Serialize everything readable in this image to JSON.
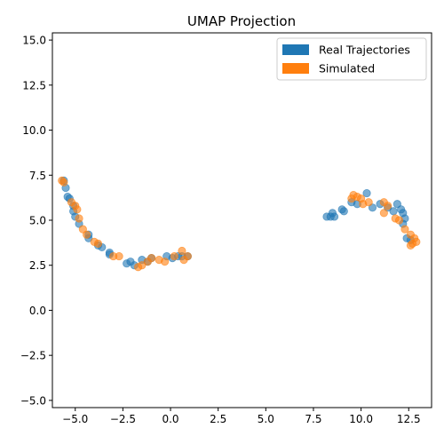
{
  "chart_data": {
    "type": "scatter",
    "title": "UMAP Projection",
    "xlabel": "",
    "ylabel": "",
    "xlim": [
      -6.2,
      13.7
    ],
    "ylim": [
      -5.4,
      15.4
    ],
    "xticks": [
      -5.0,
      -2.5,
      0.0,
      2.5,
      5.0,
      7.5,
      10.0,
      12.5
    ],
    "xtick_labels": [
      "−5.0",
      "−2.5",
      "0.0",
      "2.5",
      "5.0",
      "7.5",
      "10.0",
      "12.5"
    ],
    "yticks": [
      -5.0,
      -2.5,
      0.0,
      2.5,
      5.0,
      7.5,
      10.0,
      12.5,
      15.0
    ],
    "ytick_labels": [
      "−5.0",
      "−2.5",
      "0.0",
      "2.5",
      "5.0",
      "7.5",
      "10.0",
      "12.5",
      "15.0"
    ],
    "grid": false,
    "legend_position": "top-right",
    "series": [
      {
        "name": "Real Trajectories",
        "color": "#1f77b4",
        "points": [
          [
            -5.6,
            7.2
          ],
          [
            -5.5,
            6.8
          ],
          [
            -5.4,
            6.3
          ],
          [
            -5.3,
            6.2
          ],
          [
            -5.1,
            5.8
          ],
          [
            -5.1,
            5.5
          ],
          [
            -5.0,
            5.2
          ],
          [
            -4.8,
            4.8
          ],
          [
            -4.3,
            4.2
          ],
          [
            -4.3,
            4.0
          ],
          [
            -3.8,
            3.6
          ],
          [
            -3.6,
            3.5
          ],
          [
            -3.2,
            3.2
          ],
          [
            -3.2,
            3.1
          ],
          [
            -2.3,
            2.6
          ],
          [
            -2.1,
            2.7
          ],
          [
            -1.9,
            2.5
          ],
          [
            -1.5,
            2.8
          ],
          [
            -1.2,
            2.7
          ],
          [
            -1.0,
            2.9
          ],
          [
            -0.2,
            3.0
          ],
          [
            0.1,
            2.9
          ],
          [
            0.4,
            3.0
          ],
          [
            0.6,
            3.0
          ],
          [
            0.9,
            3.0
          ],
          [
            8.2,
            5.2
          ],
          [
            8.4,
            5.2
          ],
          [
            8.5,
            5.4
          ],
          [
            8.6,
            5.2
          ],
          [
            9.0,
            5.6
          ],
          [
            9.1,
            5.5
          ],
          [
            9.5,
            6.0
          ],
          [
            9.8,
            5.9
          ],
          [
            10.3,
            6.5
          ],
          [
            10.6,
            5.7
          ],
          [
            11.0,
            5.9
          ],
          [
            11.4,
            5.7
          ],
          [
            11.7,
            5.5
          ],
          [
            11.9,
            5.9
          ],
          [
            12.1,
            5.6
          ],
          [
            12.2,
            5.4
          ],
          [
            12.3,
            5.1
          ],
          [
            12.2,
            4.8
          ],
          [
            12.4,
            4.0
          ],
          [
            12.6,
            3.9
          ]
        ]
      },
      {
        "name": "Simulated",
        "color": "#ff7f0e",
        "points": [
          [
            -5.7,
            7.2
          ],
          [
            -5.6,
            7.1
          ],
          [
            -5.2,
            6.0
          ],
          [
            -5.0,
            5.8
          ],
          [
            -4.9,
            5.6
          ],
          [
            -4.8,
            5.1
          ],
          [
            -4.6,
            4.5
          ],
          [
            -4.4,
            4.2
          ],
          [
            -4.0,
            3.8
          ],
          [
            -3.8,
            3.7
          ],
          [
            -3.0,
            3.0
          ],
          [
            -2.7,
            3.0
          ],
          [
            -1.7,
            2.4
          ],
          [
            -1.5,
            2.5
          ],
          [
            -1.2,
            2.7
          ],
          [
            -1.0,
            2.9
          ],
          [
            -0.6,
            2.8
          ],
          [
            -0.3,
            2.7
          ],
          [
            0.2,
            3.0
          ],
          [
            0.6,
            3.3
          ],
          [
            0.7,
            2.8
          ],
          [
            0.9,
            3.0
          ],
          [
            9.5,
            6.2
          ],
          [
            9.6,
            6.4
          ],
          [
            9.8,
            6.3
          ],
          [
            10.0,
            6.2
          ],
          [
            10.1,
            5.9
          ],
          [
            10.4,
            6.0
          ],
          [
            11.2,
            5.4
          ],
          [
            11.2,
            6.0
          ],
          [
            11.4,
            5.8
          ],
          [
            11.8,
            5.1
          ],
          [
            12.0,
            5.0
          ],
          [
            12.3,
            4.5
          ],
          [
            12.6,
            4.2
          ],
          [
            12.7,
            3.7
          ],
          [
            12.8,
            4.0
          ],
          [
            12.9,
            3.8
          ],
          [
            12.6,
            3.6
          ]
        ]
      }
    ]
  }
}
